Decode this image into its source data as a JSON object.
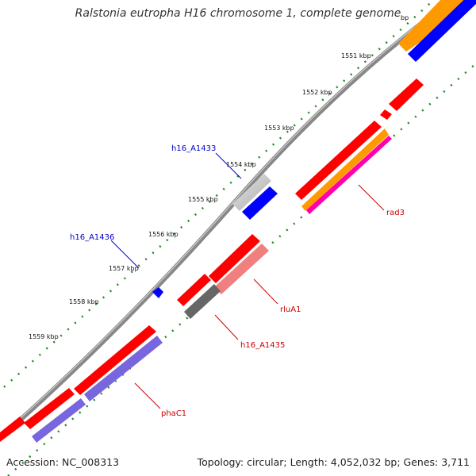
{
  "title": "Ralstonia eutropha H16 chromosome 1, complete genome",
  "footer": {
    "accession": "Accession: NC_008313",
    "summary": "Topology: circular; Length: 4,052,032 bp; Genes: 3,711"
  },
  "ticks": [
    "1551 kbp",
    "1552 kbp",
    "1553 kbp",
    "1554 kbp",
    "1555 kbp",
    "1556 kbp",
    "1557 kbp",
    "1558 kbp",
    "1559 kbp"
  ],
  "partial_tick_label": "bp",
  "gene_labels": [
    {
      "name": "h16_A1433",
      "color": "#0000cc"
    },
    {
      "name": "h16_A1436",
      "color": "#0000cc"
    },
    {
      "name": "rad3",
      "color": "#cc0000"
    },
    {
      "name": "rluA1",
      "color": "#cc0000"
    },
    {
      "name": "h16_A1435",
      "color": "#cc0000"
    },
    {
      "name": "phaC1",
      "color": "#cc0000"
    }
  ],
  "colors": {
    "backbone": "#888888",
    "tick_dots": "#228822",
    "gene_cds": "#ff0000",
    "gene_cds_light": "#f08080",
    "gene_blue": "#0000ff",
    "gene_gray": "#666666",
    "gene_lightgray": "#cccccc",
    "gene_orange": "#ff9900",
    "gene_magenta": "#ff00aa",
    "gene_purple": "#7766dd",
    "label_blue": "#0000cc",
    "label_red": "#cc0000"
  }
}
